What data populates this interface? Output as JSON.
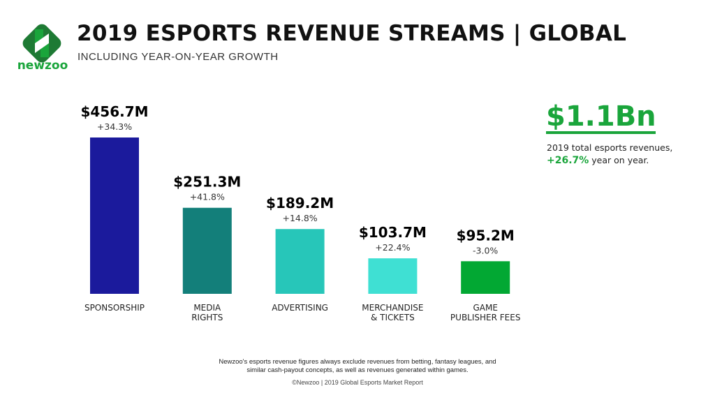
{
  "logo": {
    "text": "newzoo",
    "colors": [
      "#1e7a34",
      "#1aa53b"
    ]
  },
  "header": {
    "title": "2019 ESPORTS REVENUE STREAMS | GLOBAL",
    "subtitle": "INCLUDING YEAR-ON-YEAR GROWTH"
  },
  "chart_data": {
    "type": "bar",
    "categories": [
      [
        "SPONSORSHIP"
      ],
      [
        "MEDIA",
        "RIGHTS"
      ],
      [
        "ADVERTISING"
      ],
      [
        "MERCHANDISE",
        "& TICKETS"
      ],
      [
        "GAME",
        "PUBLISHER FEES"
      ]
    ],
    "values": [
      456.7,
      251.3,
      189.2,
      103.7,
      95.2
    ],
    "value_labels": [
      "$456.7M",
      "$251.3M",
      "$189.2M",
      "$103.7M",
      "$95.2M"
    ],
    "growth_labels": [
      "+34.3%",
      "+41.8%",
      "+14.8%",
      "+22.4%",
      "-3.0%"
    ],
    "colors": [
      "#1b1a9c",
      "#137f7a",
      "#27c6b9",
      "#3fe0d3",
      "#02a833"
    ],
    "ylim": [
      0,
      460
    ],
    "grid": false
  },
  "summary": {
    "total": "$1.1Bn",
    "description": "2019 total esports revenues,",
    "growth": "+26.7%",
    "growth_suffix": " year on year."
  },
  "footer": {
    "note": "Newzoo's esports revenue figures always exclude revenues from betting, fantasy leagues, and similar cash-payout concepts, as well as revenues generated within games.",
    "copyright": "©Newzoo | 2019 Global Esports Market Report"
  }
}
